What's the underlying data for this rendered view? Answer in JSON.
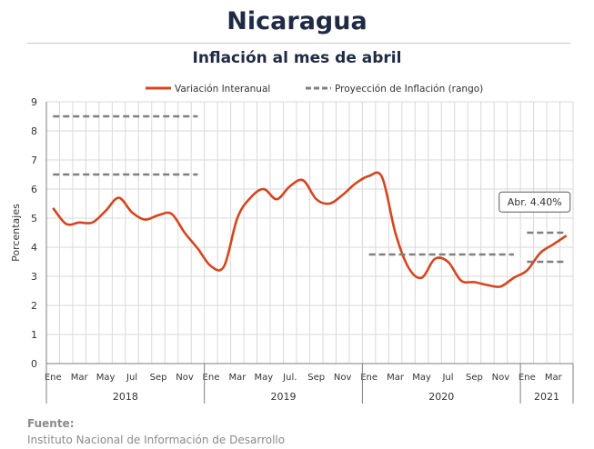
{
  "header": {
    "title": "Nicaragua",
    "subtitle": "Inflación al mes de abril"
  },
  "footer": {
    "source_label": "Fuente:",
    "source_text": "Instituto Nacional de Información de  Desarrollo"
  },
  "colors": {
    "line": "#d4461e",
    "dashed": "#7f7f7f",
    "grid": "#d9d9d9",
    "title": "#1f2a44"
  },
  "chart_data": {
    "type": "line",
    "title": "Inflación al mes de abril",
    "xlabel": "",
    "ylabel": "Porcentajes",
    "ylim": [
      0,
      9
    ],
    "yticks": [
      0,
      1,
      2,
      3,
      4,
      5,
      6,
      7,
      8,
      9
    ],
    "grid": true,
    "legend_position": "top",
    "month_labels": [
      "Ene",
      "Mar",
      "May",
      "Jul",
      "Sep",
      "Nov",
      "Ene",
      "Mar",
      "May",
      "Jul.",
      "Sep",
      "Nov",
      "Ene",
      "Mar",
      "May",
      "Jul",
      "Sep",
      "Nov",
      "Ene",
      "Mar"
    ],
    "month_label_indices": [
      0,
      2,
      4,
      6,
      8,
      10,
      12,
      14,
      16,
      18,
      20,
      22,
      24,
      26,
      28,
      30,
      32,
      34,
      36,
      38
    ],
    "years": [
      {
        "label": "2018",
        "start": 0,
        "end": 11
      },
      {
        "label": "2019",
        "start": 12,
        "end": 23
      },
      {
        "label": "2020",
        "start": 24,
        "end": 35
      },
      {
        "label": "2021",
        "start": 36,
        "end": 39
      }
    ],
    "series": [
      {
        "name": "Variación Interanual",
        "style": "solid",
        "values": [
          5.35,
          4.8,
          4.85,
          4.85,
          5.25,
          5.7,
          5.2,
          4.95,
          5.1,
          5.15,
          4.5,
          3.95,
          3.35,
          3.35,
          5.0,
          5.7,
          6.0,
          5.65,
          6.1,
          6.3,
          5.65,
          5.5,
          5.8,
          6.2,
          6.45,
          6.4,
          4.5,
          3.3,
          2.95,
          3.6,
          3.5,
          2.85,
          2.8,
          2.7,
          2.65,
          2.95,
          3.2,
          3.8,
          4.1,
          4.4
        ]
      },
      {
        "name": "Proyección de Inflación (rango)",
        "style": "dashed",
        "segments": [
          {
            "x": [
              0,
              11
            ],
            "y": 8.5
          },
          {
            "x": [
              0,
              11
            ],
            "y": 6.5
          },
          {
            "x": [
              24,
              35
            ],
            "y": 3.75
          },
          {
            "x": [
              36,
              39
            ],
            "y": 4.5
          },
          {
            "x": [
              36,
              39
            ],
            "y": 3.5
          }
        ]
      }
    ],
    "annotations": [
      {
        "text": "Abr. 4.40%",
        "x": 39,
        "y": 4.4
      }
    ]
  }
}
